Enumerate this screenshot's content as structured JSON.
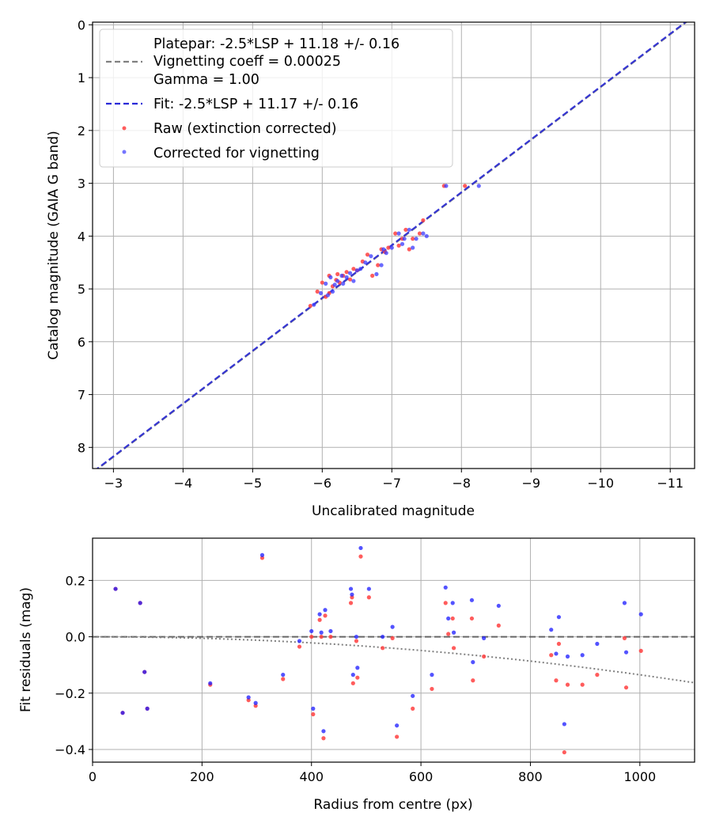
{
  "chart_data": [
    {
      "type": "scatter",
      "xlabel": "Uncalibrated magnitude",
      "ylabel": "Catalog magnitude (GAIA G band)",
      "xlim": [
        -2.7,
        -11.35
      ],
      "ylim": [
        8.4,
        -0.05
      ],
      "xticks": [
        -3,
        -4,
        -5,
        -6,
        -7,
        -8,
        -9,
        -10,
        -11
      ],
      "xtick_labels": [
        "−3",
        "−4",
        "−5",
        "−6",
        "−7",
        "−8",
        "−9",
        "−10",
        "−11"
      ],
      "yticks": [
        0,
        1,
        2,
        3,
        4,
        5,
        6,
        7,
        8
      ],
      "ytick_labels": [
        "0",
        "1",
        "2",
        "3",
        "4",
        "5",
        "6",
        "7",
        "8"
      ],
      "grid": true,
      "legend_position": "top-left",
      "legend": {
        "platepar_lines": [
          "Platepar: -2.5*LSP + 11.18 +/- 0.16",
          "Vignetting coeff = 0.00025",
          "Gamma = 1.00"
        ],
        "fit": "Fit: -2.5*LSP + 11.17 +/- 0.16",
        "raw": "Raw (extinction corrected)",
        "corrected": "Corrected for vignetting"
      },
      "lines": [
        {
          "name": "Platepar",
          "slope": 1,
          "intercept": 11.18,
          "color": "#808080",
          "style": "dashed"
        },
        {
          "name": "Fit",
          "slope": 1,
          "intercept": 11.17,
          "color": "#2a2ad8",
          "style": "dashed"
        }
      ],
      "series": [
        {
          "name": "Raw (extinction corrected)",
          "color": "#ff4040",
          "points": [
            [
              -5.83,
              5.32
            ],
            [
              -5.93,
              5.05
            ],
            [
              -6.0,
              4.88
            ],
            [
              -6.05,
              5.15
            ],
            [
              -6.1,
              4.75
            ],
            [
              -6.15,
              4.95
            ],
            [
              -6.2,
              4.83
            ],
            [
              -6.25,
              4.88
            ],
            [
              -6.3,
              4.75
            ],
            [
              -6.35,
              4.68
            ],
            [
              -6.4,
              4.82
            ],
            [
              -6.45,
              4.62
            ],
            [
              -6.5,
              4.65
            ],
            [
              -6.58,
              4.48
            ],
            [
              -6.65,
              4.35
            ],
            [
              -6.72,
              4.75
            ],
            [
              -6.85,
              4.25
            ],
            [
              -6.9,
              4.3
            ],
            [
              -6.95,
              4.22
            ],
            [
              -7.05,
              3.95
            ],
            [
              -7.1,
              4.18
            ],
            [
              -7.15,
              4.05
            ],
            [
              -7.2,
              3.88
            ],
            [
              -7.25,
              4.25
            ],
            [
              -7.3,
              4.05
            ],
            [
              -7.4,
              3.95
            ],
            [
              -7.45,
              3.7
            ],
            [
              -7.75,
              3.05
            ],
            [
              -8.05,
              3.05
            ],
            [
              -6.8,
              4.55
            ],
            [
              -6.1,
              5.08
            ],
            [
              -6.22,
              4.72
            ]
          ]
        },
        {
          "name": "Corrected for vignetting",
          "color": "#3a3aff",
          "points": [
            [
              -5.88,
              5.3
            ],
            [
              -5.98,
              5.08
            ],
            [
              -6.05,
              4.9
            ],
            [
              -6.08,
              5.12
            ],
            [
              -6.12,
              4.78
            ],
            [
              -6.18,
              4.92
            ],
            [
              -6.22,
              4.85
            ],
            [
              -6.3,
              4.9
            ],
            [
              -6.35,
              4.78
            ],
            [
              -6.4,
              4.7
            ],
            [
              -6.45,
              4.85
            ],
            [
              -6.5,
              4.65
            ],
            [
              -6.55,
              4.62
            ],
            [
              -6.62,
              4.5
            ],
            [
              -6.7,
              4.38
            ],
            [
              -6.78,
              4.72
            ],
            [
              -6.88,
              4.25
            ],
            [
              -6.92,
              4.32
            ],
            [
              -7.0,
              4.22
            ],
            [
              -7.1,
              3.95
            ],
            [
              -7.15,
              4.15
            ],
            [
              -7.18,
              4.05
            ],
            [
              -7.25,
              3.88
            ],
            [
              -7.3,
              4.22
            ],
            [
              -7.35,
              4.05
            ],
            [
              -7.45,
              3.95
            ],
            [
              -7.5,
              4.0
            ],
            [
              -7.78,
              3.05
            ],
            [
              -8.25,
              3.05
            ],
            [
              -6.85,
              4.55
            ],
            [
              -6.15,
              5.05
            ],
            [
              -6.28,
              4.75
            ]
          ]
        }
      ]
    },
    {
      "type": "scatter",
      "xlabel": "Radius from centre (px)",
      "ylabel": "Fit residuals (mag)",
      "xlim": [
        0,
        1100
      ],
      "ylim": [
        -0.445,
        0.35
      ],
      "xticks": [
        0,
        200,
        400,
        600,
        800,
        1000
      ],
      "xtick_labels": [
        "0",
        "200",
        "400",
        "600",
        "800",
        "1000"
      ],
      "yticks": [
        -0.4,
        -0.2,
        0.0,
        0.2
      ],
      "ytick_labels": [
        "−0.4",
        "−0.2",
        "0.0",
        "0.2"
      ],
      "grid": true,
      "reference_lines": [
        {
          "name": "zero",
          "value": 0.0,
          "color": "#555555",
          "style": "dashed"
        },
        {
          "name": "vignetting model",
          "coeff": 0.00025,
          "color": "#808080",
          "style": "dotted"
        }
      ],
      "series": [
        {
          "name": "Raw (extinction corrected)",
          "color": "#ff4040",
          "points": [
            [
              42,
              0.17
            ],
            [
              55,
              -0.27
            ],
            [
              87,
              0.12
            ],
            [
              95,
              -0.125
            ],
            [
              100,
              -0.255
            ],
            [
              215,
              -0.17
            ],
            [
              285,
              -0.225
            ],
            [
              298,
              -0.245
            ],
            [
              310,
              0.28
            ],
            [
              348,
              -0.15
            ],
            [
              378,
              -0.035
            ],
            [
              400,
              0.0
            ],
            [
              403,
              -0.275
            ],
            [
              415,
              0.06
            ],
            [
              418,
              0.0
            ],
            [
              422,
              -0.36
            ],
            [
              425,
              0.075
            ],
            [
              435,
              0.0
            ],
            [
              472,
              0.12
            ],
            [
              474,
              0.14
            ],
            [
              476,
              -0.165
            ],
            [
              482,
              -0.015
            ],
            [
              484,
              -0.145
            ],
            [
              490,
              0.285
            ],
            [
              505,
              0.14
            ],
            [
              530,
              -0.04
            ],
            [
              548,
              -0.005
            ],
            [
              556,
              -0.355
            ],
            [
              585,
              -0.255
            ],
            [
              620,
              -0.185
            ],
            [
              645,
              0.12
            ],
            [
              650,
              0.01
            ],
            [
              658,
              0.065
            ],
            [
              660,
              -0.04
            ],
            [
              693,
              0.065
            ],
            [
              695,
              -0.155
            ],
            [
              715,
              -0.07
            ],
            [
              742,
              0.04
            ],
            [
              838,
              -0.065
            ],
            [
              847,
              -0.155
            ],
            [
              852,
              -0.025
            ],
            [
              862,
              -0.41
            ],
            [
              868,
              -0.17
            ],
            [
              895,
              -0.17
            ],
            [
              922,
              -0.135
            ],
            [
              972,
              -0.005
            ],
            [
              975,
              -0.18
            ],
            [
              1002,
              -0.05
            ]
          ]
        },
        {
          "name": "Corrected for vignetting",
          "color": "#1a1aff",
          "points": [
            [
              42,
              0.17
            ],
            [
              55,
              -0.27
            ],
            [
              87,
              0.12
            ],
            [
              95,
              -0.125
            ],
            [
              100,
              -0.255
            ],
            [
              215,
              -0.165
            ],
            [
              285,
              -0.215
            ],
            [
              298,
              -0.235
            ],
            [
              310,
              0.29
            ],
            [
              348,
              -0.135
            ],
            [
              378,
              -0.015
            ],
            [
              400,
              0.02
            ],
            [
              403,
              -0.255
            ],
            [
              415,
              0.08
            ],
            [
              418,
              0.015
            ],
            [
              422,
              -0.335
            ],
            [
              425,
              0.095
            ],
            [
              435,
              0.02
            ],
            [
              472,
              0.17
            ],
            [
              474,
              0.15
            ],
            [
              476,
              -0.135
            ],
            [
              482,
              0.0
            ],
            [
              484,
              -0.11
            ],
            [
              490,
              0.315
            ],
            [
              505,
              0.17
            ],
            [
              530,
              0.0
            ],
            [
              548,
              0.035
            ],
            [
              556,
              -0.315
            ],
            [
              585,
              -0.21
            ],
            [
              620,
              -0.135
            ],
            [
              645,
              0.175
            ],
            [
              650,
              0.065
            ],
            [
              658,
              0.12
            ],
            [
              660,
              0.015
            ],
            [
              693,
              0.13
            ],
            [
              695,
              -0.09
            ],
            [
              715,
              -0.005
            ],
            [
              742,
              0.11
            ],
            [
              838,
              0.025
            ],
            [
              847,
              -0.06
            ],
            [
              852,
              0.07
            ],
            [
              862,
              -0.31
            ],
            [
              868,
              -0.07
            ],
            [
              895,
              -0.065
            ],
            [
              922,
              -0.025
            ],
            [
              972,
              0.12
            ],
            [
              975,
              -0.055
            ],
            [
              1002,
              0.08
            ]
          ]
        }
      ]
    }
  ]
}
